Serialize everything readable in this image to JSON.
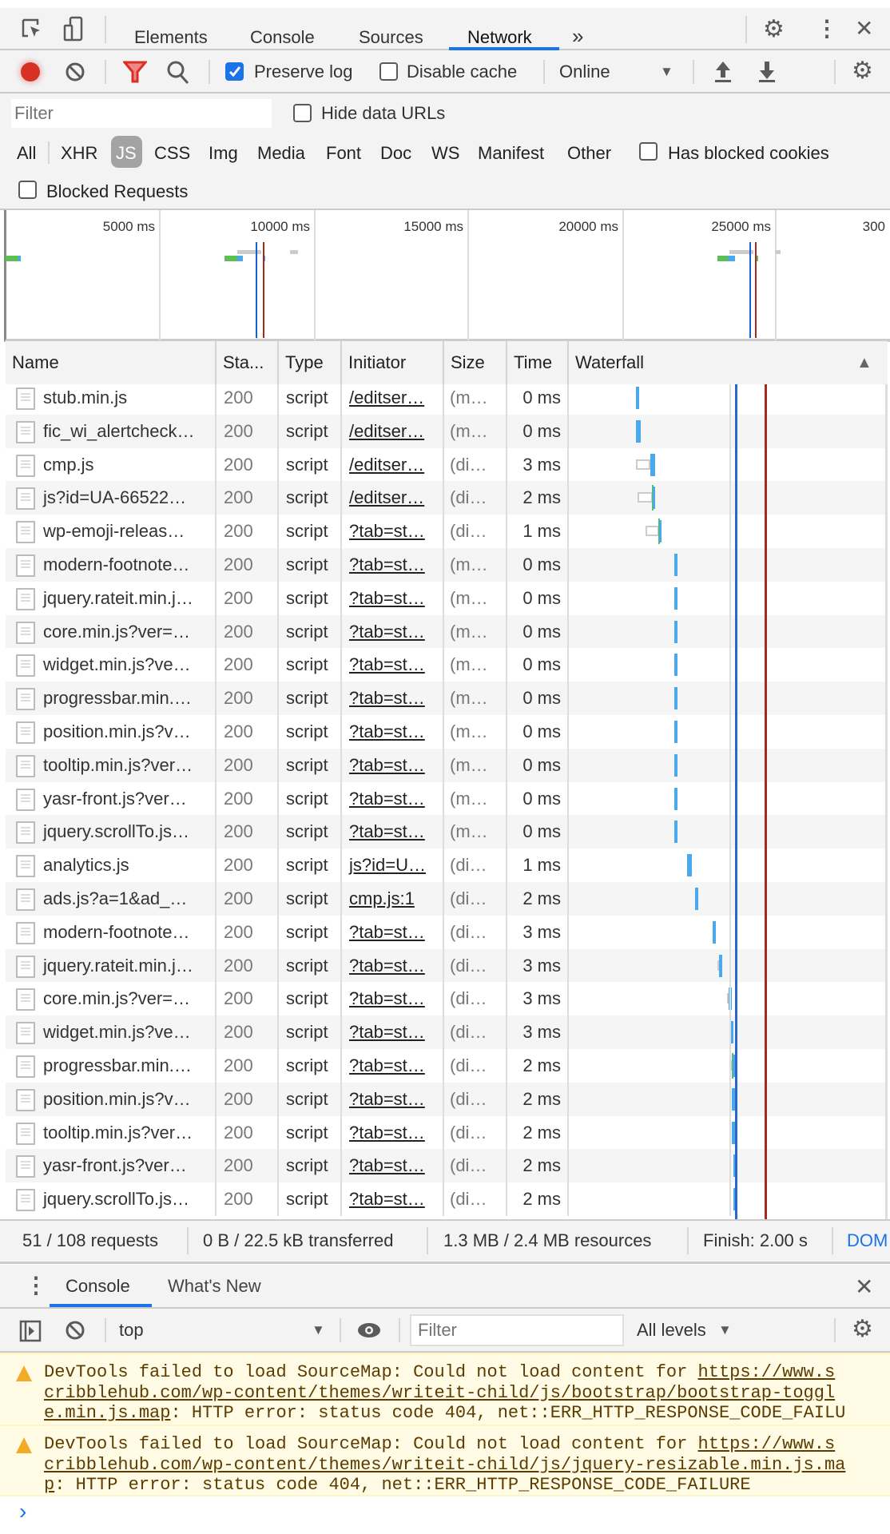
{
  "devtools": {
    "tabs": [
      "Elements",
      "Console",
      "Sources",
      "Network"
    ],
    "active_tab": "Network",
    "more_tabs": "»"
  },
  "toolbar": {
    "preserve_log": {
      "label": "Preserve log",
      "checked": true
    },
    "disable_cache": {
      "label": "Disable cache",
      "checked": false
    },
    "throttling": "Online"
  },
  "filter": {
    "placeholder": "Filter",
    "hide_data_urls": {
      "label": "Hide data URLs",
      "checked": false
    },
    "types": [
      "All",
      "XHR",
      "JS",
      "CSS",
      "Img",
      "Media",
      "Font",
      "Doc",
      "WS",
      "Manifest",
      "Other"
    ],
    "active_type": "JS",
    "has_blocked_cookies": {
      "label": "Has blocked cookies",
      "checked": false
    },
    "blocked_requests": {
      "label": "Blocked Requests",
      "checked": false
    }
  },
  "overview": {
    "ticks": [
      "5000 ms",
      "10000 ms",
      "15000 ms",
      "20000 ms",
      "25000 ms",
      "300"
    ]
  },
  "table": {
    "columns": [
      "Name",
      "Sta...",
      "Type",
      "Initiator",
      "Size",
      "Time",
      "Waterfall"
    ],
    "sort_indicator": "▲",
    "rows": [
      {
        "name": "stub.min.js",
        "status": "200",
        "type": "script",
        "initiator": "/editser…",
        "size": "(m…",
        "time": "0 ms"
      },
      {
        "name": "fic_wi_alertcheck…",
        "status": "200",
        "type": "script",
        "initiator": "/editser…",
        "size": "(m…",
        "time": "0 ms"
      },
      {
        "name": "cmp.js",
        "status": "200",
        "type": "script",
        "initiator": "/editser…",
        "size": "(di…",
        "time": "3 ms"
      },
      {
        "name": "js?id=UA-66522…",
        "status": "200",
        "type": "script",
        "initiator": "/editser…",
        "size": "(di…",
        "time": "2 ms"
      },
      {
        "name": "wp-emoji-releas…",
        "status": "200",
        "type": "script",
        "initiator": "?tab=st…",
        "size": "(di…",
        "time": "1 ms"
      },
      {
        "name": "modern-footnote…",
        "status": "200",
        "type": "script",
        "initiator": "?tab=st…",
        "size": "(m…",
        "time": "0 ms"
      },
      {
        "name": "jquery.rateit.min.j…",
        "status": "200",
        "type": "script",
        "initiator": "?tab=st…",
        "size": "(m…",
        "time": "0 ms"
      },
      {
        "name": "core.min.js?ver=…",
        "status": "200",
        "type": "script",
        "initiator": "?tab=st…",
        "size": "(m…",
        "time": "0 ms"
      },
      {
        "name": "widget.min.js?ve…",
        "status": "200",
        "type": "script",
        "initiator": "?tab=st…",
        "size": "(m…",
        "time": "0 ms"
      },
      {
        "name": "progressbar.min.…",
        "status": "200",
        "type": "script",
        "initiator": "?tab=st…",
        "size": "(m…",
        "time": "0 ms"
      },
      {
        "name": "position.min.js?v…",
        "status": "200",
        "type": "script",
        "initiator": "?tab=st…",
        "size": "(m…",
        "time": "0 ms"
      },
      {
        "name": "tooltip.min.js?ver…",
        "status": "200",
        "type": "script",
        "initiator": "?tab=st…",
        "size": "(m…",
        "time": "0 ms"
      },
      {
        "name": "yasr-front.js?ver…",
        "status": "200",
        "type": "script",
        "initiator": "?tab=st…",
        "size": "(m…",
        "time": "0 ms"
      },
      {
        "name": "jquery.scrollTo.js…",
        "status": "200",
        "type": "script",
        "initiator": "?tab=st…",
        "size": "(m…",
        "time": "0 ms"
      },
      {
        "name": "analytics.js",
        "status": "200",
        "type": "script",
        "initiator": "js?id=U…",
        "size": "(di…",
        "time": "1 ms"
      },
      {
        "name": "ads.js?a=1&ad_…",
        "status": "200",
        "type": "script",
        "initiator": "cmp.js:1",
        "size": "(di…",
        "time": "2 ms"
      },
      {
        "name": "modern-footnote…",
        "status": "200",
        "type": "script",
        "initiator": "?tab=st…",
        "size": "(di…",
        "time": "3 ms"
      },
      {
        "name": "jquery.rateit.min.j…",
        "status": "200",
        "type": "script",
        "initiator": "?tab=st…",
        "size": "(di…",
        "time": "3 ms"
      },
      {
        "name": "core.min.js?ver=…",
        "status": "200",
        "type": "script",
        "initiator": "?tab=st…",
        "size": "(di…",
        "time": "3 ms"
      },
      {
        "name": "widget.min.js?ve…",
        "status": "200",
        "type": "script",
        "initiator": "?tab=st…",
        "size": "(di…",
        "time": "3 ms"
      },
      {
        "name": "progressbar.min.…",
        "status": "200",
        "type": "script",
        "initiator": "?tab=st…",
        "size": "(di…",
        "time": "2 ms"
      },
      {
        "name": "position.min.js?v…",
        "status": "200",
        "type": "script",
        "initiator": "?tab=st…",
        "size": "(di…",
        "time": "2 ms"
      },
      {
        "name": "tooltip.min.js?ver…",
        "status": "200",
        "type": "script",
        "initiator": "?tab=st…",
        "size": "(di…",
        "time": "2 ms"
      },
      {
        "name": "yasr-front.js?ver…",
        "status": "200",
        "type": "script",
        "initiator": "?tab=st…",
        "size": "(di…",
        "time": "2 ms"
      },
      {
        "name": "jquery.scrollTo.js…",
        "status": "200",
        "type": "script",
        "initiator": "?tab=st…",
        "size": "(di…",
        "time": "2 ms"
      }
    ]
  },
  "summary": {
    "requests": "51 / 108 requests",
    "transferred": "0 B / 22.5 kB transferred",
    "resources": "1.3 MB / 2.4 MB resources",
    "finish": "Finish: 2.00 s",
    "dom": "DOM"
  },
  "drawer": {
    "tabs": [
      "Console",
      "What's New"
    ],
    "active_tab": "Console",
    "context": "top",
    "filter_placeholder": "Filter",
    "levels": "All levels"
  },
  "console": {
    "messages": [
      {
        "level": "warning",
        "prefix": "DevTools failed to load SourceMap: Could not load content for ",
        "url": "https://www.scribblehub.com/wp-content/themes/writeit-child/js/bootstrap/bootstrap-toggle.min.js.map",
        "suffix": ": HTTP error: status code 404, net::ERR_HTTP_RESPONSE_CODE_FAILURE"
      },
      {
        "level": "warning",
        "prefix": "DevTools failed to load SourceMap: Could not load content for ",
        "url": "https://www.scribblehub.com/wp-content/themes/writeit-child/js/jquery-resizable.min.js.map",
        "suffix": ": HTTP error: status code 404, net::ERR_HTTP_RESPONSE_CODE_FAILURE"
      }
    ],
    "prompt": "›"
  },
  "colors": {
    "accent": "#1a73e8",
    "record": "#d93025",
    "dom_line": "#1a5fd0",
    "load_line": "#a52a1e",
    "bar": "#4aa8ec",
    "warning_bg": "#fffbe5"
  }
}
